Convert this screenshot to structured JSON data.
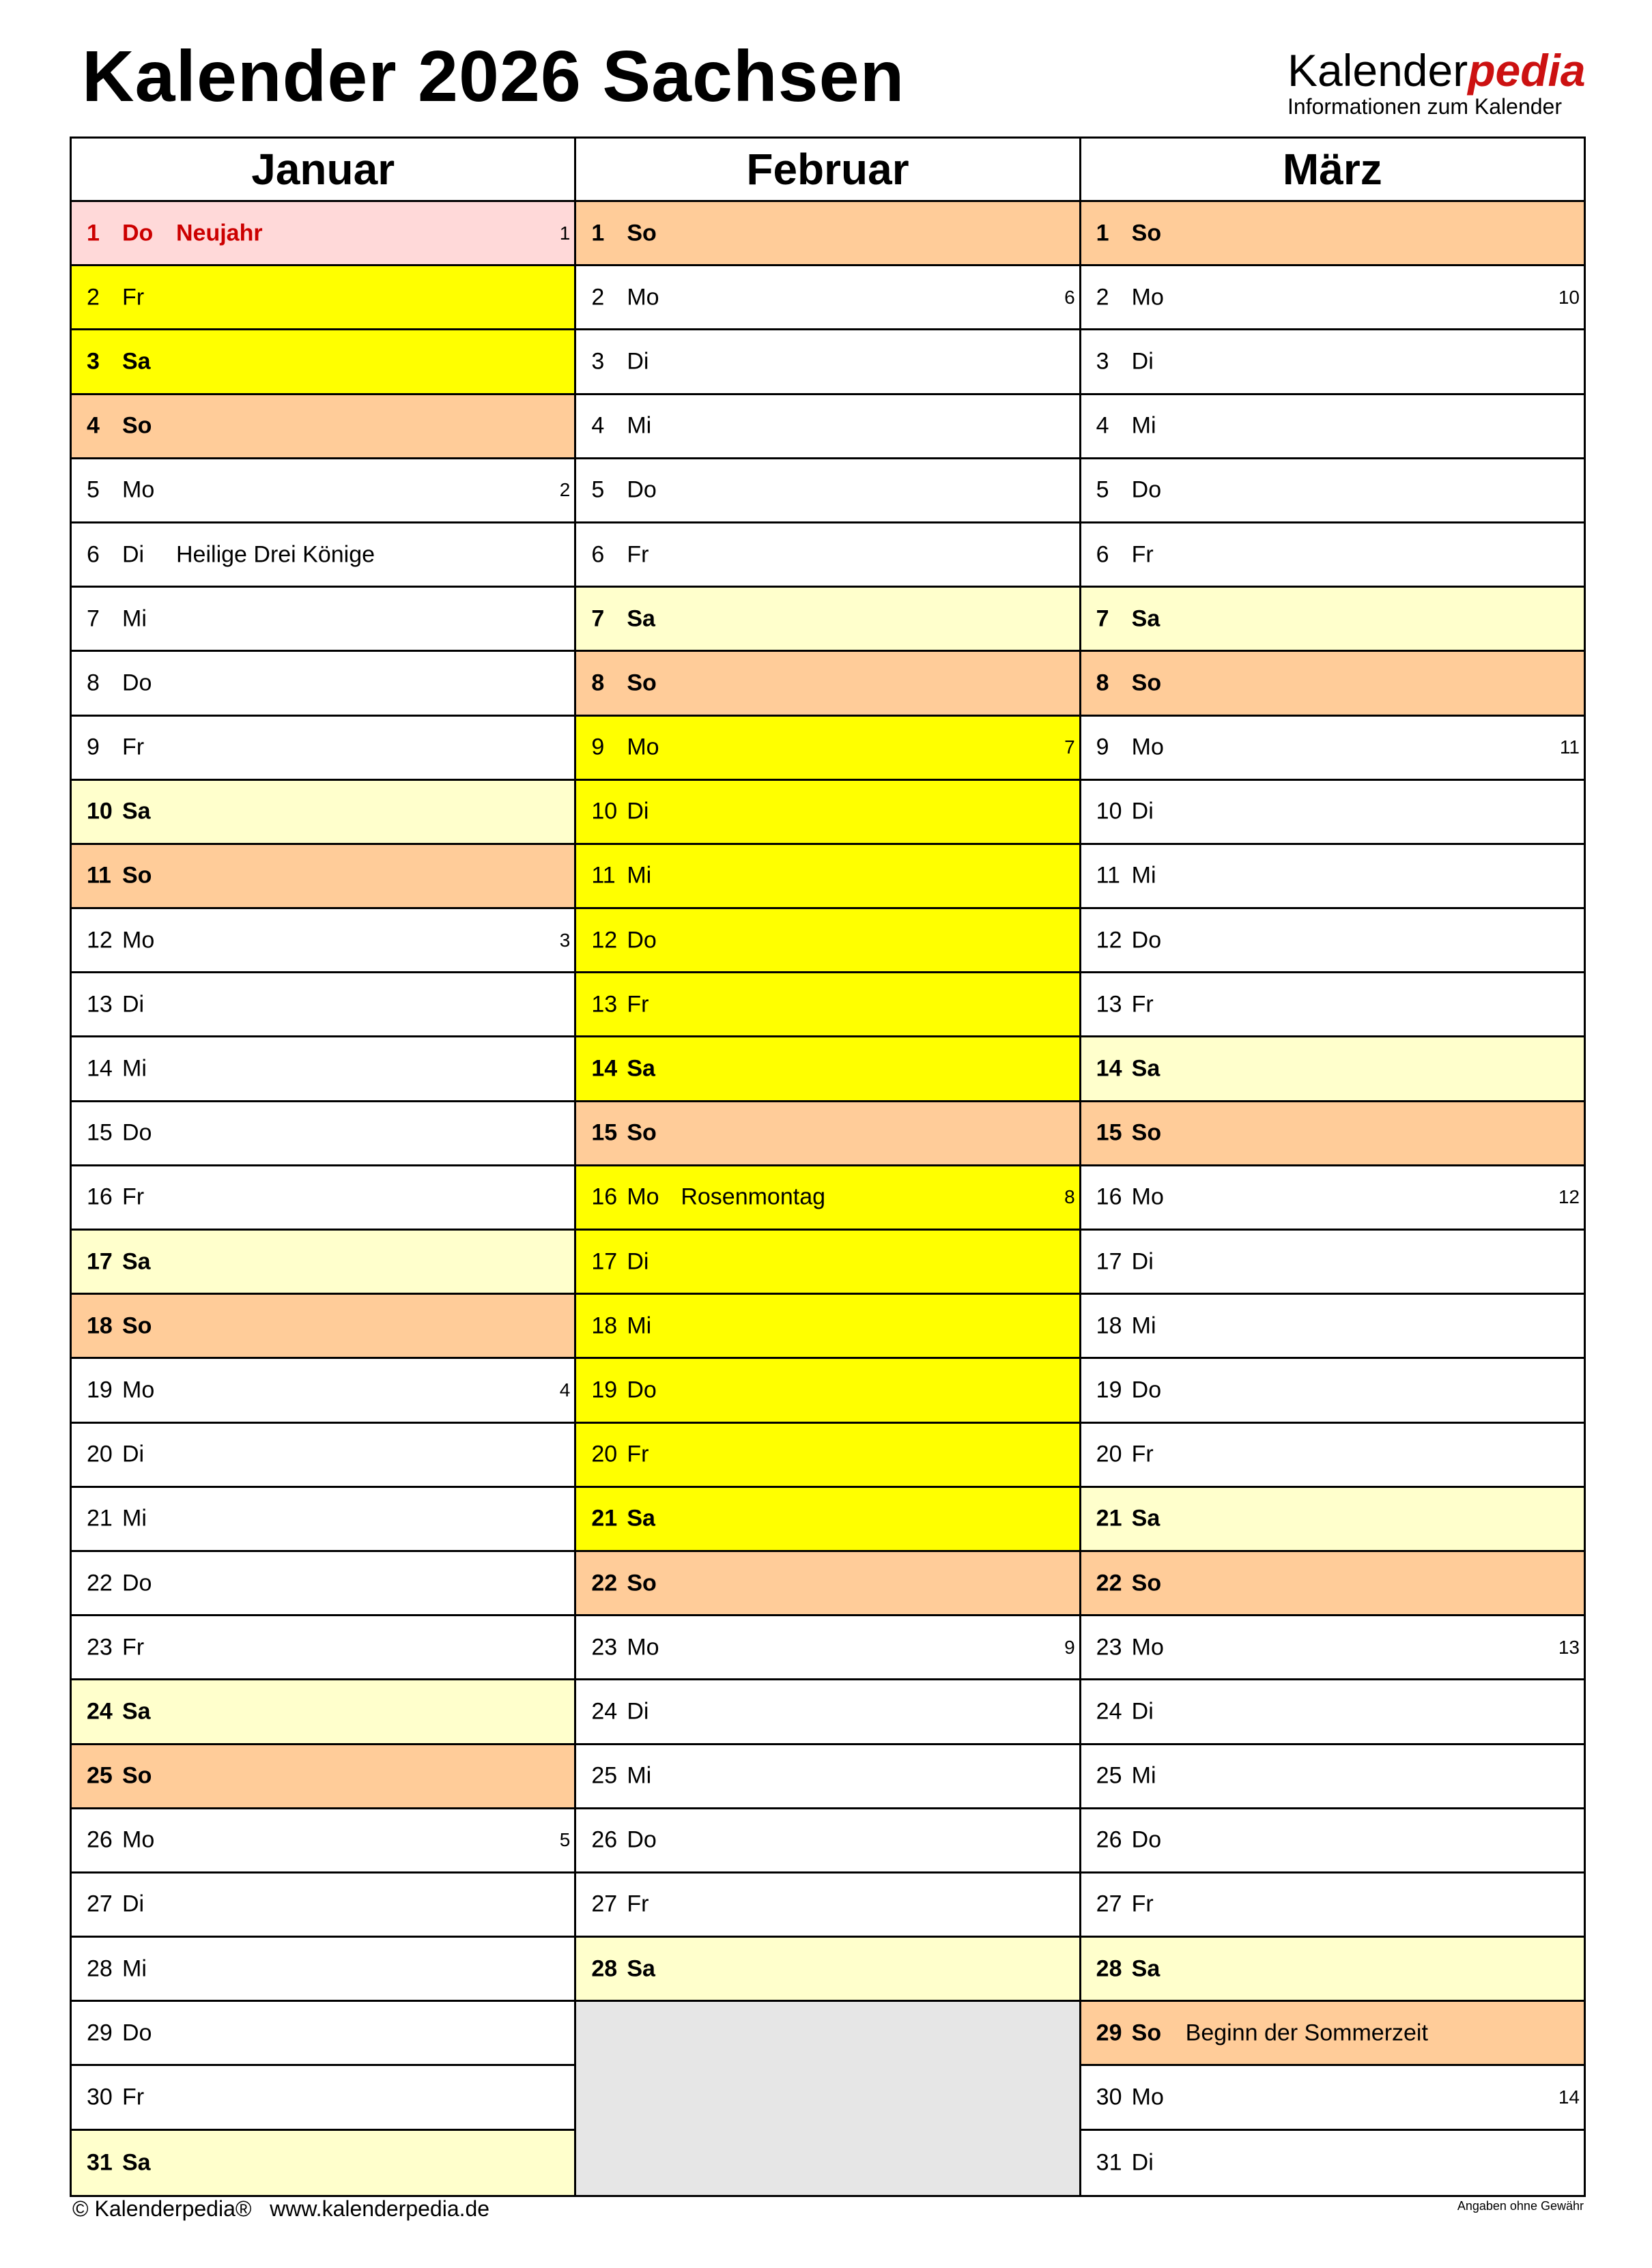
{
  "title": "Kalender 2026 Sachsen",
  "logo": {
    "brand_a": "Kalender",
    "brand_b": "pedia",
    "tagline": "Informationen zum Kalender"
  },
  "colors": {
    "holiday": "#ffd9d9",
    "school_holiday": "#ffff00",
    "saturday": "#ffffcc",
    "sunday": "#ffcc99",
    "empty": "#e6e6e6",
    "brand_red": "#cc1111"
  },
  "months": [
    {
      "name": "Januar",
      "days": [
        {
          "d": "1",
          "w": "Do",
          "n": "Neujahr",
          "k": "1",
          "t": "holiday"
        },
        {
          "d": "2",
          "w": "Fr",
          "t": "school"
        },
        {
          "d": "3",
          "w": "Sa",
          "t": "school-sat"
        },
        {
          "d": "4",
          "w": "So",
          "t": "sun"
        },
        {
          "d": "5",
          "w": "Mo",
          "k": "2"
        },
        {
          "d": "6",
          "w": "Di",
          "n": "Heilige Drei Könige"
        },
        {
          "d": "7",
          "w": "Mi"
        },
        {
          "d": "8",
          "w": "Do"
        },
        {
          "d": "9",
          "w": "Fr"
        },
        {
          "d": "10",
          "w": "Sa",
          "t": "sat"
        },
        {
          "d": "11",
          "w": "So",
          "t": "sun"
        },
        {
          "d": "12",
          "w": "Mo",
          "k": "3"
        },
        {
          "d": "13",
          "w": "Di"
        },
        {
          "d": "14",
          "w": "Mi"
        },
        {
          "d": "15",
          "w": "Do"
        },
        {
          "d": "16",
          "w": "Fr"
        },
        {
          "d": "17",
          "w": "Sa",
          "t": "sat"
        },
        {
          "d": "18",
          "w": "So",
          "t": "sun"
        },
        {
          "d": "19",
          "w": "Mo",
          "k": "4"
        },
        {
          "d": "20",
          "w": "Di"
        },
        {
          "d": "21",
          "w": "Mi"
        },
        {
          "d": "22",
          "w": "Do"
        },
        {
          "d": "23",
          "w": "Fr"
        },
        {
          "d": "24",
          "w": "Sa",
          "t": "sat"
        },
        {
          "d": "25",
          "w": "So",
          "t": "sun"
        },
        {
          "d": "26",
          "w": "Mo",
          "k": "5"
        },
        {
          "d": "27",
          "w": "Di"
        },
        {
          "d": "28",
          "w": "Mi"
        },
        {
          "d": "29",
          "w": "Do"
        },
        {
          "d": "30",
          "w": "Fr"
        },
        {
          "d": "31",
          "w": "Sa",
          "t": "sat"
        }
      ]
    },
    {
      "name": "Februar",
      "days": [
        {
          "d": "1",
          "w": "So",
          "t": "sun"
        },
        {
          "d": "2",
          "w": "Mo",
          "k": "6"
        },
        {
          "d": "3",
          "w": "Di"
        },
        {
          "d": "4",
          "w": "Mi"
        },
        {
          "d": "5",
          "w": "Do"
        },
        {
          "d": "6",
          "w": "Fr"
        },
        {
          "d": "7",
          "w": "Sa",
          "t": "sat"
        },
        {
          "d": "8",
          "w": "So",
          "t": "sun"
        },
        {
          "d": "9",
          "w": "Mo",
          "k": "7",
          "t": "school"
        },
        {
          "d": "10",
          "w": "Di",
          "t": "school"
        },
        {
          "d": "11",
          "w": "Mi",
          "t": "school"
        },
        {
          "d": "12",
          "w": "Do",
          "t": "school"
        },
        {
          "d": "13",
          "w": "Fr",
          "t": "school"
        },
        {
          "d": "14",
          "w": "Sa",
          "t": "school-sat"
        },
        {
          "d": "15",
          "w": "So",
          "t": "sun"
        },
        {
          "d": "16",
          "w": "Mo",
          "n": "Rosenmontag",
          "k": "8",
          "t": "school"
        },
        {
          "d": "17",
          "w": "Di",
          "t": "school"
        },
        {
          "d": "18",
          "w": "Mi",
          "t": "school"
        },
        {
          "d": "19",
          "w": "Do",
          "t": "school"
        },
        {
          "d": "20",
          "w": "Fr",
          "t": "school"
        },
        {
          "d": "21",
          "w": "Sa",
          "t": "school-sat"
        },
        {
          "d": "22",
          "w": "So",
          "t": "sun"
        },
        {
          "d": "23",
          "w": "Mo",
          "k": "9"
        },
        {
          "d": "24",
          "w": "Di"
        },
        {
          "d": "25",
          "w": "Mi"
        },
        {
          "d": "26",
          "w": "Do"
        },
        {
          "d": "27",
          "w": "Fr"
        },
        {
          "d": "28",
          "w": "Sa",
          "t": "sat"
        }
      ]
    },
    {
      "name": "März",
      "days": [
        {
          "d": "1",
          "w": "So",
          "t": "sun"
        },
        {
          "d": "2",
          "w": "Mo",
          "k": "10"
        },
        {
          "d": "3",
          "w": "Di"
        },
        {
          "d": "4",
          "w": "Mi"
        },
        {
          "d": "5",
          "w": "Do"
        },
        {
          "d": "6",
          "w": "Fr"
        },
        {
          "d": "7",
          "w": "Sa",
          "t": "sat"
        },
        {
          "d": "8",
          "w": "So",
          "t": "sun"
        },
        {
          "d": "9",
          "w": "Mo",
          "k": "11"
        },
        {
          "d": "10",
          "w": "Di"
        },
        {
          "d": "11",
          "w": "Mi"
        },
        {
          "d": "12",
          "w": "Do"
        },
        {
          "d": "13",
          "w": "Fr"
        },
        {
          "d": "14",
          "w": "Sa",
          "t": "sat"
        },
        {
          "d": "15",
          "w": "So",
          "t": "sun"
        },
        {
          "d": "16",
          "w": "Mo",
          "k": "12"
        },
        {
          "d": "17",
          "w": "Di"
        },
        {
          "d": "18",
          "w": "Mi"
        },
        {
          "d": "19",
          "w": "Do"
        },
        {
          "d": "20",
          "w": "Fr"
        },
        {
          "d": "21",
          "w": "Sa",
          "t": "sat"
        },
        {
          "d": "22",
          "w": "So",
          "t": "sun"
        },
        {
          "d": "23",
          "w": "Mo",
          "k": "13"
        },
        {
          "d": "24",
          "w": "Di"
        },
        {
          "d": "25",
          "w": "Mi"
        },
        {
          "d": "26",
          "w": "Do"
        },
        {
          "d": "27",
          "w": "Fr"
        },
        {
          "d": "28",
          "w": "Sa",
          "t": "sat"
        },
        {
          "d": "29",
          "w": "So",
          "n": "Beginn der Sommerzeit",
          "t": "sun"
        },
        {
          "d": "30",
          "w": "Mo",
          "k": "14"
        },
        {
          "d": "31",
          "w": "Di"
        }
      ]
    }
  ],
  "footer": {
    "copyright": "© Kalenderpedia®   www.kalenderpedia.de",
    "disclaimer": "Angaben ohne Gewähr"
  }
}
